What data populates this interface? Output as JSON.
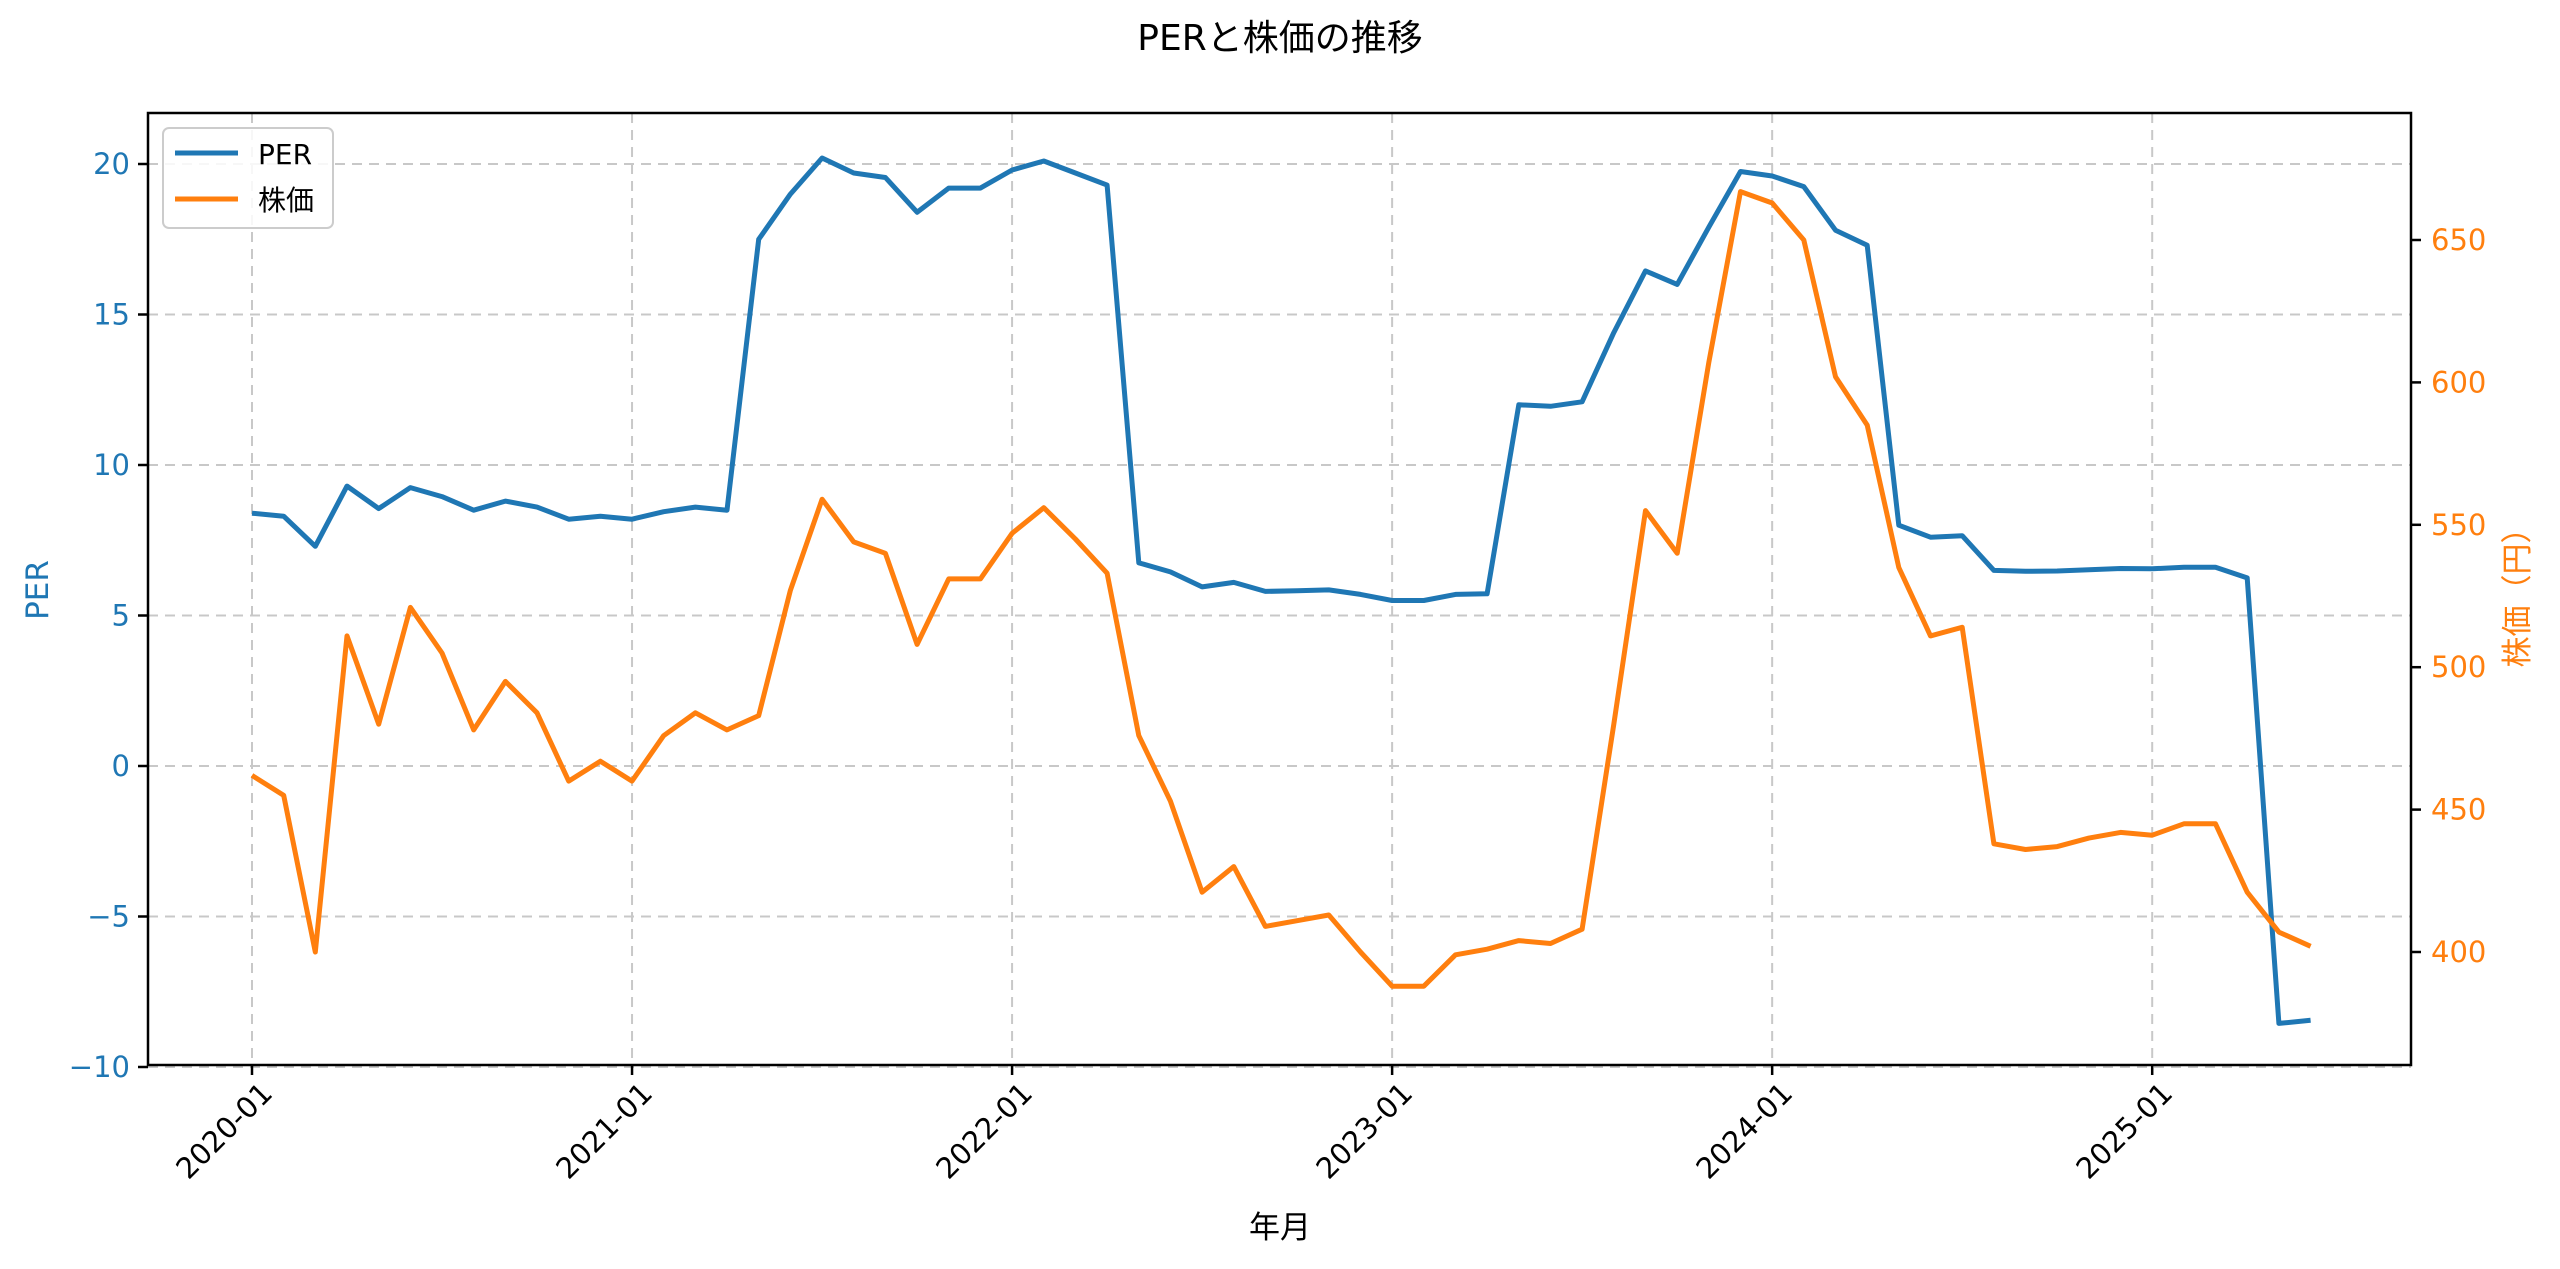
{
  "chart_data": {
    "type": "line",
    "title": "PERと株価の推移",
    "xlabel": "年月",
    "ylabel": "PER",
    "ylabel_right": "株価（円）",
    "ylim": [
      -10,
      21.8
    ],
    "ylim_right": [
      364,
      685
    ],
    "yticks": [
      -10,
      -5,
      0,
      5,
      10,
      15,
      20
    ],
    "yticks_right": [
      400,
      450,
      500,
      550,
      600,
      650
    ],
    "xticks": [
      "2020-01",
      "2021-01",
      "2022-01",
      "2023-01",
      "2024-01",
      "2025-01"
    ],
    "grid": true,
    "legend_position": "upper left",
    "x": [
      "2020-01",
      "2020-02",
      "2020-03",
      "2020-04",
      "2020-05",
      "2020-06",
      "2020-07",
      "2020-08",
      "2020-09",
      "2020-10",
      "2020-11",
      "2020-12",
      "2021-01",
      "2021-02",
      "2021-03",
      "2021-04",
      "2021-05",
      "2021-06",
      "2021-07",
      "2021-08",
      "2021-09",
      "2021-10",
      "2021-11",
      "2021-12",
      "2022-01",
      "2022-02",
      "2022-03",
      "2022-04",
      "2022-05",
      "2022-06",
      "2022-07",
      "2022-08",
      "2022-09",
      "2022-10",
      "2022-11",
      "2022-12",
      "2023-01",
      "2023-02",
      "2023-03",
      "2023-04",
      "2023-05",
      "2023-06",
      "2023-07",
      "2023-08",
      "2023-09",
      "2023-10",
      "2023-11",
      "2023-12",
      "2024-01",
      "2024-02",
      "2024-03",
      "2024-04",
      "2024-05",
      "2024-06",
      "2024-07",
      "2024-08",
      "2024-09",
      "2024-10",
      "2024-11",
      "2024-12",
      "2025-01",
      "2025-02",
      "2025-03",
      "2025-04",
      "2025-05",
      "2025-06"
    ],
    "series": [
      {
        "name": "PER",
        "axis": "left",
        "color": "#1f77b4",
        "values": [
          8.4,
          8.3,
          7.3,
          9.3,
          8.55,
          9.25,
          8.95,
          8.5,
          8.8,
          8.6,
          8.2,
          8.3,
          8.2,
          8.45,
          8.6,
          8.5,
          17.5,
          19.0,
          20.2,
          19.7,
          19.55,
          18.4,
          19.2,
          19.2,
          19.8,
          20.1,
          19.7,
          19.3,
          6.75,
          6.45,
          5.95,
          6.1,
          5.8,
          5.82,
          5.85,
          5.7,
          5.5,
          5.5,
          5.7,
          5.72,
          12.0,
          11.95,
          12.1,
          14.4,
          16.45,
          16.0,
          17.9,
          19.75,
          19.6,
          19.25,
          17.8,
          17.3,
          8.0,
          7.6,
          7.65,
          6.5,
          6.47,
          6.48,
          6.52,
          6.56,
          6.55,
          6.6,
          6.6,
          6.25,
          -8.55,
          -8.45
        ]
      },
      {
        "name": "株価",
        "axis": "right",
        "color": "#ff7f0e",
        "values": [
          462,
          455,
          400,
          511,
          480,
          521,
          505,
          478,
          495,
          484,
          460,
          467,
          460,
          476,
          484,
          478,
          483,
          527,
          559,
          544,
          540,
          508,
          531,
          531,
          547,
          556,
          545,
          533,
          476,
          453,
          421,
          430,
          409,
          411,
          413,
          400,
          388,
          388,
          399,
          401,
          404,
          403,
          408,
          480,
          555,
          540,
          607,
          667,
          663,
          650,
          602,
          585,
          535,
          511,
          514,
          438,
          436,
          437,
          440,
          442,
          441,
          445,
          445,
          421,
          407,
          402
        ]
      }
    ]
  },
  "legend": {
    "items": [
      {
        "label": "PER",
        "color": "#1f77b4"
      },
      {
        "label": "株価",
        "color": "#ff7f0e"
      }
    ]
  }
}
